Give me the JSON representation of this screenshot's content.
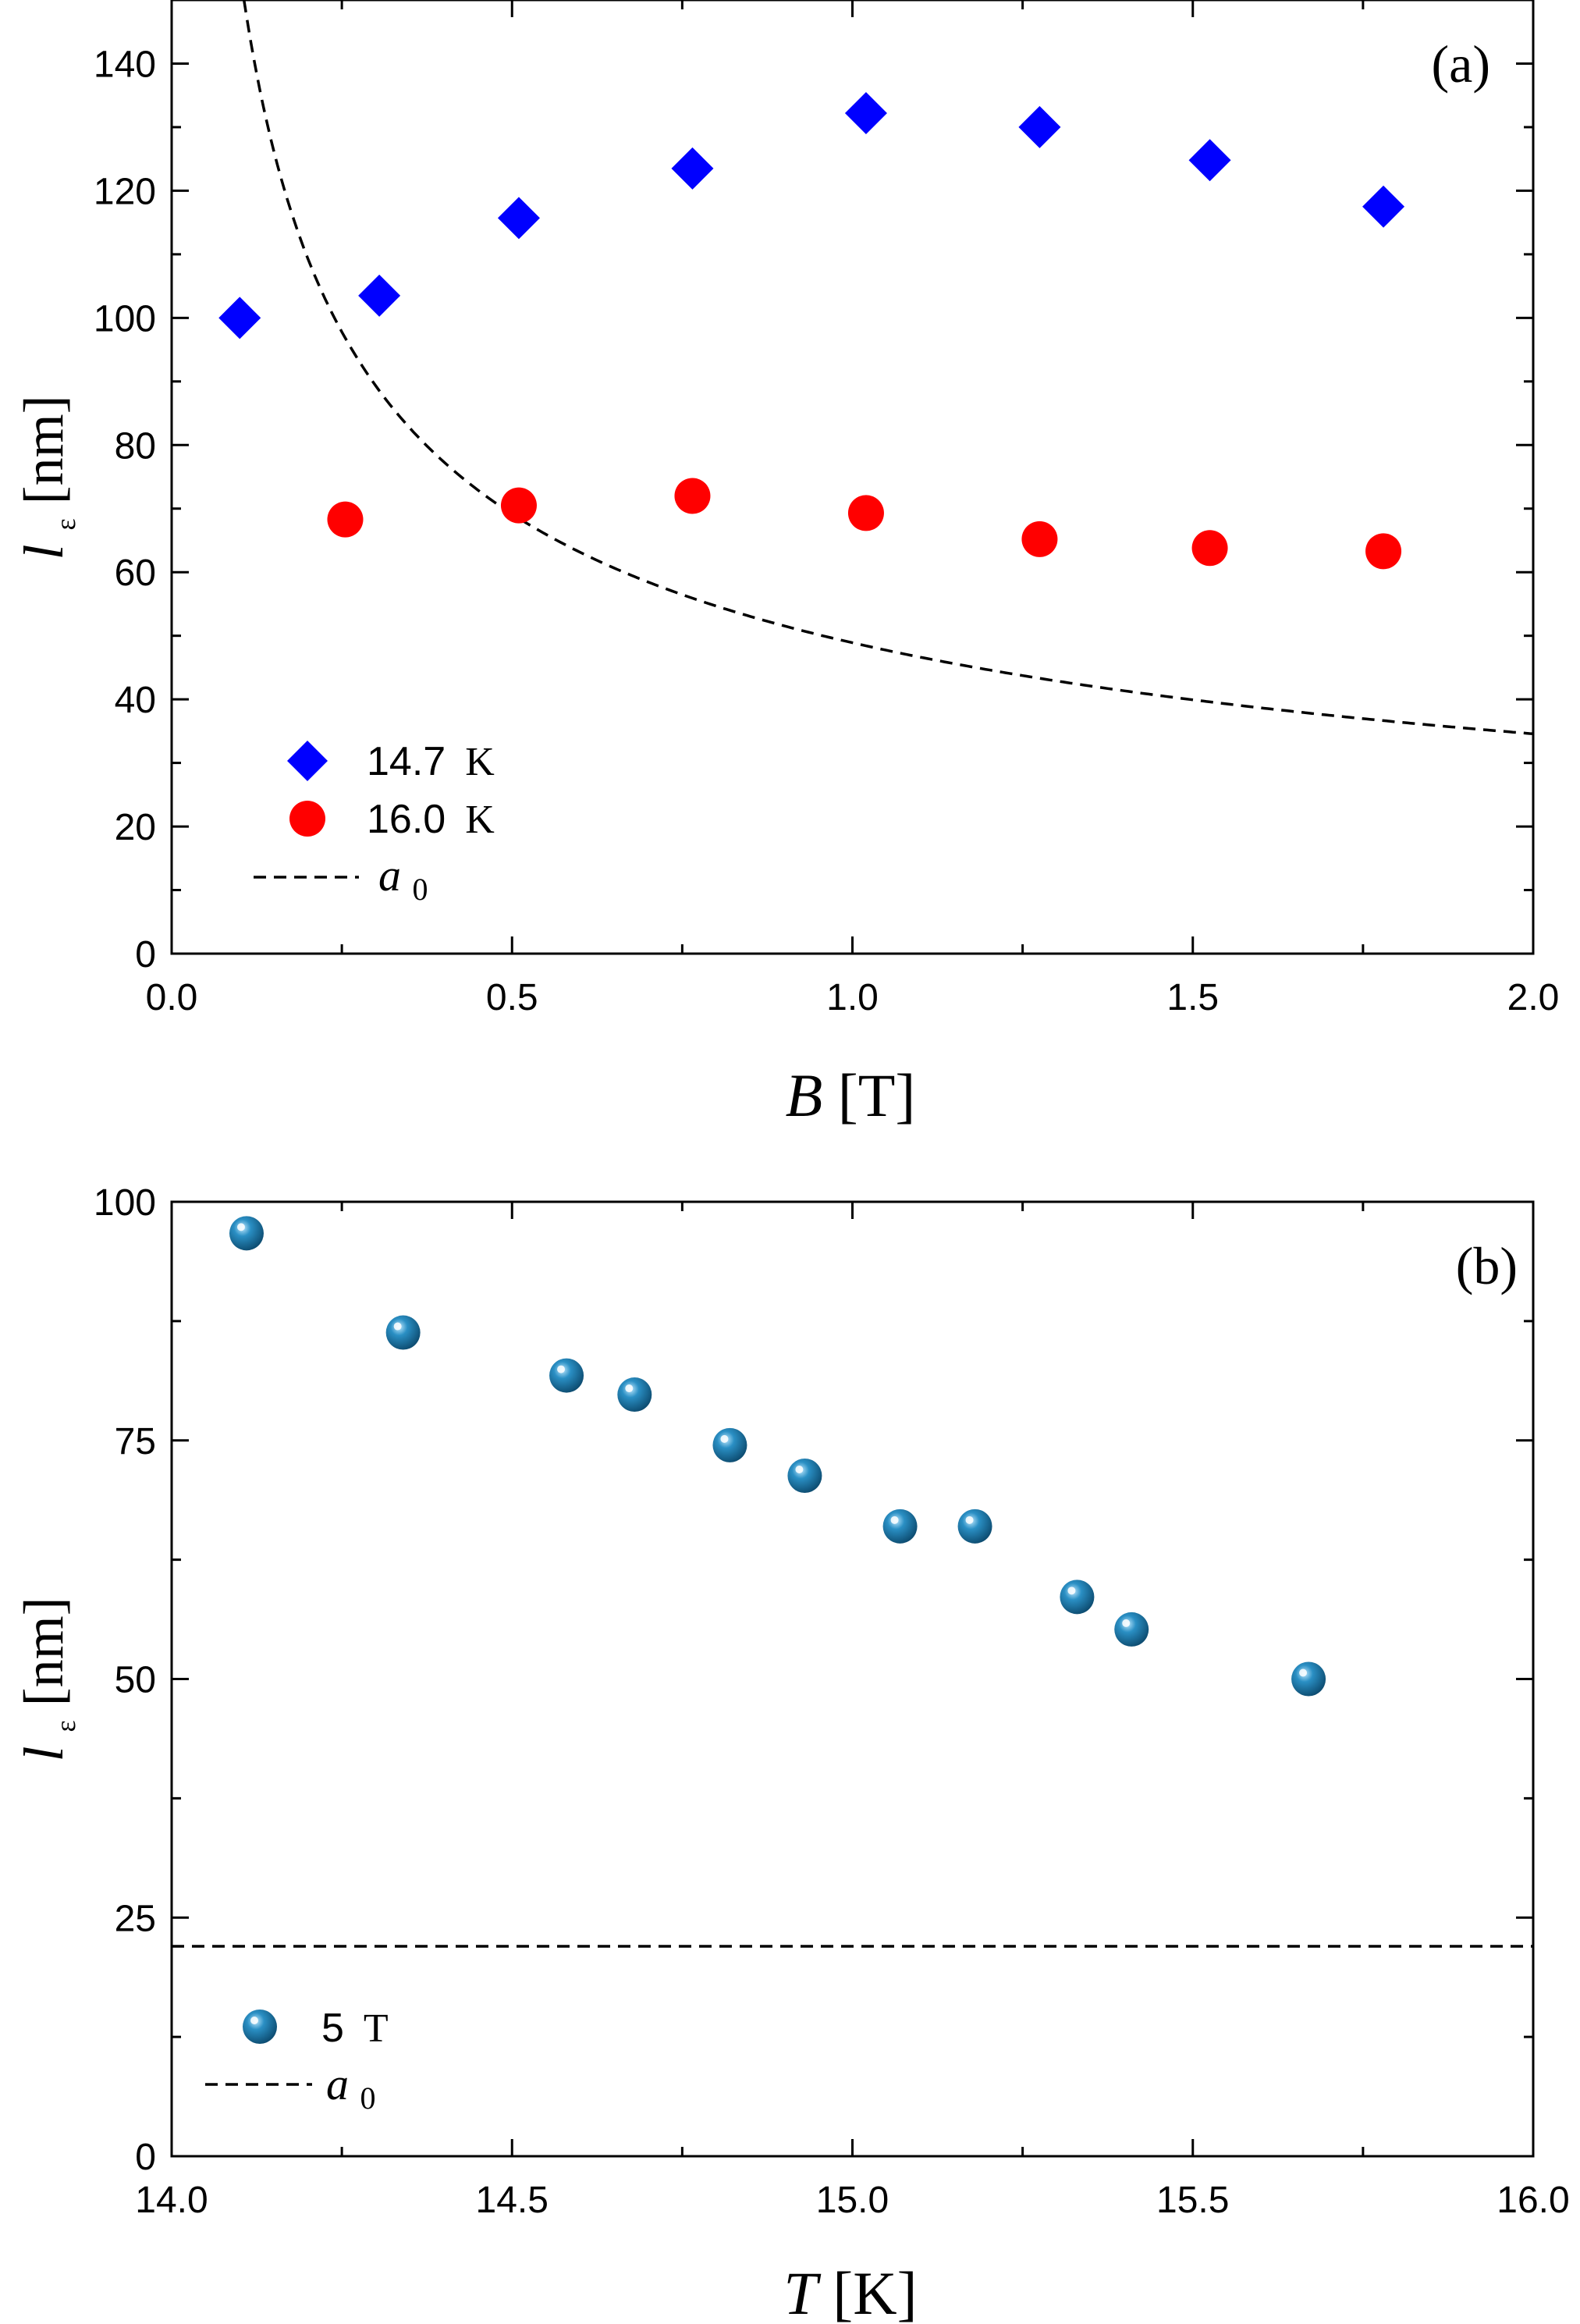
{
  "chart_data": [
    {
      "type": "scatter",
      "panel_label": "(a)",
      "xlabel_var": "B",
      "xlabel_unit": " [T]",
      "ylabel_var": "l",
      "ylabel_sub": "ε",
      "ylabel_unit": " [nm]",
      "xlim": [
        0.0,
        2.0
      ],
      "ylim": [
        0,
        150
      ],
      "xticks": [
        0.0,
        0.5,
        1.0,
        1.5,
        2.0
      ],
      "xtick_labels": [
        "0.0",
        "0.5",
        "1.0",
        "1.5",
        "2.0"
      ],
      "yticks": [
        0,
        20,
        40,
        60,
        80,
        100,
        120,
        140
      ],
      "ytick_labels": [
        "0",
        "20",
        "40",
        "60",
        "80",
        "100",
        "120",
        "140"
      ],
      "series": [
        {
          "name": "14.7 K",
          "label_num": "14.7",
          "label_unit": "K",
          "marker": "diamond",
          "color": "#0000ff",
          "x": [
            0.1,
            0.305,
            0.51,
            0.765,
            1.02,
            1.275,
            1.525,
            1.78
          ],
          "y": [
            100,
            103.5,
            115.7,
            123.5,
            132.2,
            130,
            124.8,
            117.5
          ]
        },
        {
          "name": "16.0 K",
          "label_num": "16.0",
          "label_unit": "K",
          "marker": "circle",
          "color": "#ff0000",
          "x": [
            0.255,
            0.51,
            0.765,
            1.02,
            1.275,
            1.525,
            1.78
          ],
          "y": [
            68.3,
            70.5,
            72,
            69.3,
            65.2,
            63.8,
            63.3
          ]
        }
      ],
      "reference_curve": {
        "name": "a0",
        "label_base": "a",
        "label_sub": "0",
        "style": "dashed",
        "color": "#000000",
        "formula_coefficient": 48.9,
        "formula": "a0 = 48.9 / sqrt(B)"
      },
      "legend_position": "bottom-left"
    },
    {
      "type": "scatter",
      "panel_label": "(b)",
      "xlabel_var": "T",
      "xlabel_unit": " [K]",
      "ylabel_var": "l",
      "ylabel_sub": "ε",
      "ylabel_unit": " [nm]",
      "xlim": [
        14.0,
        16.0
      ],
      "ylim": [
        0,
        100
      ],
      "xticks": [
        14.0,
        14.5,
        15.0,
        15.5,
        16.0
      ],
      "xtick_labels": [
        "14.0",
        "14.5",
        "15.0",
        "15.5",
        "16.0"
      ],
      "yticks": [
        0,
        25,
        50,
        75,
        100
      ],
      "ytick_labels": [
        "0",
        "25",
        "50",
        "75",
        "100"
      ],
      "series": [
        {
          "name": "5 T",
          "label_num": "5",
          "label_unit": "T",
          "marker": "sphere",
          "color": "#1b6f9e",
          "x": [
            14.11,
            14.34,
            14.58,
            14.68,
            14.82,
            14.93,
            15.07,
            15.18,
            15.33,
            15.41,
            15.67
          ],
          "y": [
            96.7,
            86.3,
            81.8,
            79.8,
            74.5,
            71.3,
            66,
            66,
            58.6,
            55.2,
            50
          ]
        }
      ],
      "reference_line": {
        "name": "a0",
        "label_base": "a",
        "label_sub": "0",
        "style": "dashed",
        "color": "#000000",
        "y": 22
      },
      "legend_position": "bottom-left"
    }
  ]
}
